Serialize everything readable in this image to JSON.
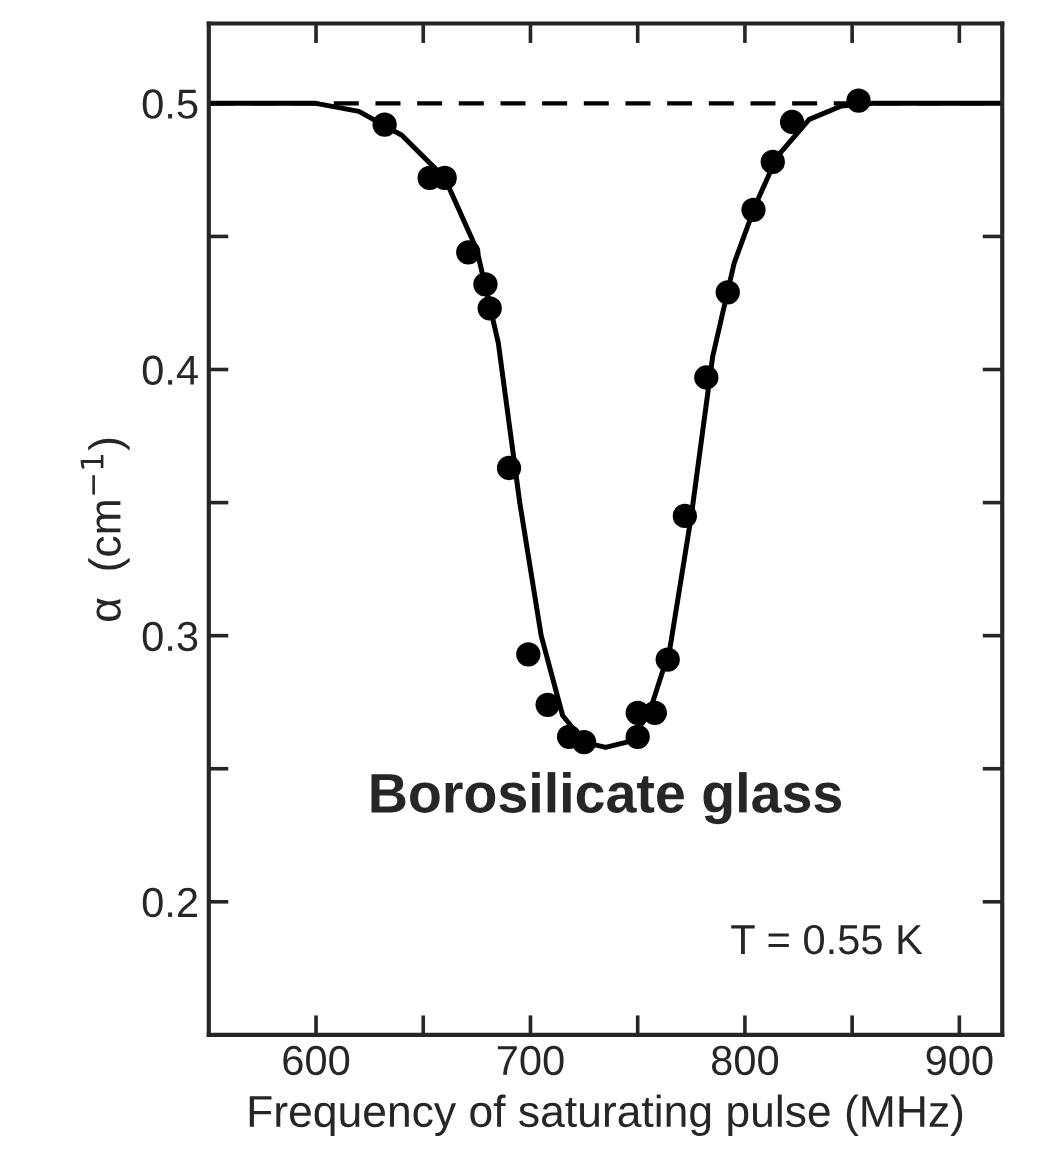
{
  "chart_data": {
    "type": "scatter",
    "xlabel": "Frequency of saturating pulse (MHz)",
    "ylabel": "α  (cm$^{−1}$)",
    "xlim": [
      550,
      920
    ],
    "ylim": [
      0.15,
      0.53
    ],
    "xticks": [
      600,
      {
        "value": 650,
        "label": null
      },
      700,
      {
        "value": 750,
        "label": null
      },
      800,
      {
        "value": 850,
        "label": null
      },
      900
    ],
    "yticks": [
      0.2,
      {
        "value": 0.25,
        "label": null
      },
      0.3,
      {
        "value": 0.35,
        "label": null
      },
      0.4,
      {
        "value": 0.45,
        "label": null
      },
      0.5
    ],
    "grid": false,
    "legend": false,
    "series": [
      {
        "marker": "circle",
        "color": "#000000",
        "x": [
          632,
          653,
          660,
          671,
          679,
          681,
          690,
          699,
          708,
          718,
          725,
          750,
          750,
          758,
          764,
          772,
          782,
          792,
          804,
          813,
          822,
          853
        ],
        "values": [
          0.492,
          0.472,
          0.472,
          0.444,
          0.432,
          0.423,
          0.363,
          0.293,
          0.274,
          0.262,
          0.26,
          0.262,
          0.271,
          0.271,
          0.291,
          0.345,
          0.397,
          0.429,
          0.46,
          0.478,
          0.493,
          0.501
        ]
      },
      {
        "type": "line",
        "color": "#000000",
        "marker": "none",
        "line_style": "solid",
        "x": [
          550,
          600,
          620,
          640,
          660,
          675,
          685,
          695,
          705,
          715,
          725,
          735,
          745,
          755,
          765,
          775,
          785,
          795,
          805,
          815,
          830,
          845,
          860,
          920
        ],
        "values": [
          0.5,
          0.5,
          0.497,
          0.488,
          0.472,
          0.445,
          0.41,
          0.35,
          0.3,
          0.27,
          0.26,
          0.258,
          0.26,
          0.27,
          0.295,
          0.345,
          0.405,
          0.44,
          0.462,
          0.48,
          0.494,
          0.499,
          0.5,
          0.5
        ]
      }
    ],
    "ref_lines": [
      {
        "axis": "y",
        "value": 0.5,
        "color": "#000000",
        "line_style": "dashed"
      }
    ],
    "annotations": [
      "Borosilicate glass",
      "T = 0.55 K"
    ]
  }
}
